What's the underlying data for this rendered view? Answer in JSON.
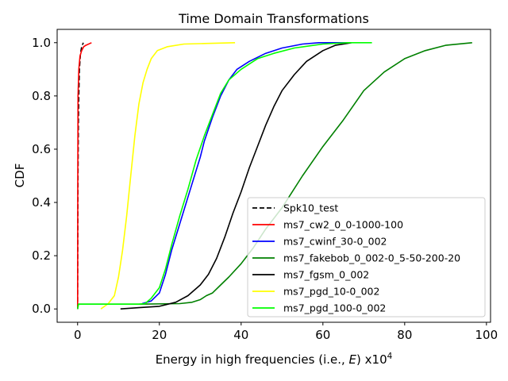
{
  "chart_data": {
    "type": "line",
    "title": "Time Domain Transformations",
    "xlabel_prefix": "Energy in high frequencies (i.e., ",
    "xlabel_var": "E",
    "xlabel_suffix": ") x10",
    "xlabel_exp": "4",
    "ylabel": "CDF",
    "xlim": [
      -5,
      101
    ],
    "ylim": [
      -0.05,
      1.05
    ],
    "xticks": [
      0,
      20,
      40,
      60,
      80,
      100
    ],
    "yticks": [
      0.0,
      0.2,
      0.4,
      0.6,
      0.8,
      1.0
    ],
    "xtick_labels": [
      "0",
      "20",
      "40",
      "60",
      "80",
      "100"
    ],
    "ytick_labels": [
      "0.0",
      "0.2",
      "0.4",
      "0.6",
      "0.8",
      "1.0"
    ],
    "legend_position": "lower-right",
    "grid": false,
    "series": [
      {
        "name": "Spk10_test",
        "color": "#000000",
        "dash": true,
        "points": [
          [
            0.0,
            0.0
          ],
          [
            0.05,
            0.2
          ],
          [
            0.1,
            0.5
          ],
          [
            0.2,
            0.7
          ],
          [
            0.3,
            0.8
          ],
          [
            0.45,
            0.9
          ],
          [
            0.7,
            0.96
          ],
          [
            1.0,
            0.985
          ],
          [
            1.4,
            1.0
          ]
        ]
      },
      {
        "name": "ms7_cw2_0_0-1000-100",
        "color": "#ff0000",
        "dash": false,
        "points": [
          [
            0.0,
            0.0
          ],
          [
            0.05,
            0.5
          ],
          [
            0.1,
            0.8
          ],
          [
            0.3,
            0.9
          ],
          [
            0.6,
            0.95
          ],
          [
            1.0,
            0.97
          ],
          [
            1.5,
            0.985
          ],
          [
            2.0,
            0.99
          ],
          [
            3.4,
            1.0
          ]
        ]
      },
      {
        "name": "ms7_cwinf_30-0_002",
        "color": "#0000ff",
        "dash": false,
        "points": [
          [
            15.8,
            0.02
          ],
          [
            18.0,
            0.03
          ],
          [
            20.0,
            0.06
          ],
          [
            21.5,
            0.13
          ],
          [
            23.0,
            0.22
          ],
          [
            25.0,
            0.32
          ],
          [
            27.0,
            0.42
          ],
          [
            29.0,
            0.52
          ],
          [
            30.0,
            0.57
          ],
          [
            31.0,
            0.63
          ],
          [
            33.0,
            0.72
          ],
          [
            35.0,
            0.8
          ],
          [
            37.0,
            0.86
          ],
          [
            39.0,
            0.9
          ],
          [
            42.0,
            0.93
          ],
          [
            46.0,
            0.96
          ],
          [
            50.0,
            0.98
          ],
          [
            55.0,
            0.995
          ],
          [
            59.0,
            1.0
          ],
          [
            66.0,
            1.0
          ]
        ]
      },
      {
        "name": "ms7_fakebob_0_002-0_5-50-200-20",
        "color": "#008000",
        "dash": false,
        "points": [
          [
            0.0,
            0.0
          ],
          [
            0.2,
            0.018
          ],
          [
            5.0,
            0.018
          ],
          [
            15.0,
            0.018
          ],
          [
            25.0,
            0.02
          ],
          [
            28.0,
            0.025
          ],
          [
            30.0,
            0.035
          ],
          [
            31.5,
            0.05
          ],
          [
            33.0,
            0.06
          ],
          [
            35.0,
            0.09
          ],
          [
            37.0,
            0.12
          ],
          [
            40.0,
            0.17
          ],
          [
            43.0,
            0.23
          ],
          [
            46.0,
            0.3
          ],
          [
            50.0,
            0.38
          ],
          [
            55.0,
            0.5
          ],
          [
            60.0,
            0.61
          ],
          [
            65.0,
            0.71
          ],
          [
            70.0,
            0.82
          ],
          [
            75.0,
            0.89
          ],
          [
            80.0,
            0.94
          ],
          [
            85.0,
            0.97
          ],
          [
            90.0,
            0.99
          ],
          [
            96.5,
            1.0
          ]
        ]
      },
      {
        "name": "ms7_fgsm_0_002",
        "color": "#000000",
        "dash": false,
        "points": [
          [
            10.5,
            0.0
          ],
          [
            15.0,
            0.005
          ],
          [
            20.0,
            0.01
          ],
          [
            24.0,
            0.025
          ],
          [
            27.0,
            0.05
          ],
          [
            30.0,
            0.09
          ],
          [
            32.0,
            0.13
          ],
          [
            34.0,
            0.19
          ],
          [
            36.0,
            0.27
          ],
          [
            38.0,
            0.36
          ],
          [
            40.0,
            0.44
          ],
          [
            42.0,
            0.53
          ],
          [
            44.0,
            0.61
          ],
          [
            46.0,
            0.69
          ],
          [
            48.0,
            0.76
          ],
          [
            50.0,
            0.82
          ],
          [
            53.0,
            0.88
          ],
          [
            56.0,
            0.93
          ],
          [
            60.0,
            0.97
          ],
          [
            63.0,
            0.99
          ],
          [
            67.0,
            1.0
          ]
        ]
      },
      {
        "name": "ms7_pgd_10-0_002",
        "color": "#ffff00",
        "dash": false,
        "points": [
          [
            5.7,
            0.0
          ],
          [
            7.5,
            0.02
          ],
          [
            9.0,
            0.05
          ],
          [
            10.0,
            0.12
          ],
          [
            11.0,
            0.22
          ],
          [
            12.0,
            0.35
          ],
          [
            13.0,
            0.5
          ],
          [
            14.0,
            0.65
          ],
          [
            15.0,
            0.77
          ],
          [
            16.0,
            0.85
          ],
          [
            17.0,
            0.9
          ],
          [
            18.0,
            0.94
          ],
          [
            19.5,
            0.97
          ],
          [
            22.0,
            0.985
          ],
          [
            26.0,
            0.995
          ],
          [
            31.0,
            0.997
          ],
          [
            38.5,
            1.0
          ]
        ]
      },
      {
        "name": "ms7_pgd_100-0_002",
        "color": "#00ff00",
        "dash": false,
        "points": [
          [
            0.0,
            0.0
          ],
          [
            0.2,
            0.018
          ],
          [
            5.0,
            0.018
          ],
          [
            15.0,
            0.018
          ],
          [
            16.5,
            0.02
          ],
          [
            18.0,
            0.04
          ],
          [
            20.0,
            0.08
          ],
          [
            21.5,
            0.15
          ],
          [
            23.0,
            0.24
          ],
          [
            25.0,
            0.35
          ],
          [
            27.0,
            0.45
          ],
          [
            29.0,
            0.56
          ],
          [
            31.0,
            0.65
          ],
          [
            33.0,
            0.73
          ],
          [
            35.0,
            0.81
          ],
          [
            37.0,
            0.86
          ],
          [
            40.0,
            0.9
          ],
          [
            44.0,
            0.94
          ],
          [
            48.0,
            0.96
          ],
          [
            53.0,
            0.98
          ],
          [
            60.0,
            0.995
          ],
          [
            66.0,
            1.0
          ],
          [
            72.0,
            1.0
          ]
        ]
      }
    ]
  }
}
